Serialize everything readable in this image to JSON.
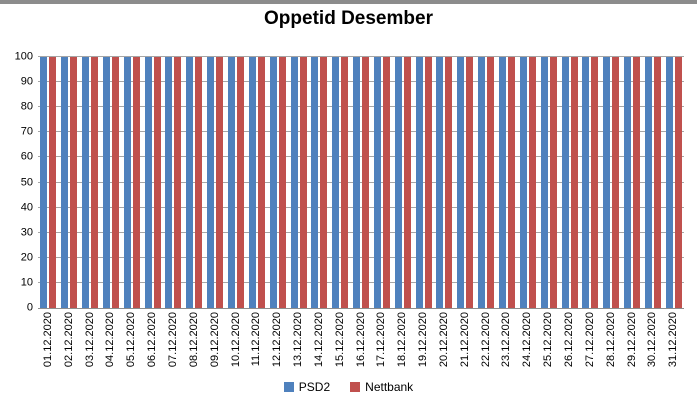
{
  "window": {
    "top_border_color": "#8c8c8c"
  },
  "chart_data": {
    "type": "bar",
    "title": "Oppetid Desember",
    "xlabel": "",
    "ylabel": "",
    "categories": [
      "01.12.2020",
      "02.12.2020",
      "03.12.2020",
      "04.12.2020",
      "05.12.2020",
      "06.12.2020",
      "07.12.2020",
      "08.12.2020",
      "09.12.2020",
      "10.12.2020",
      "11.12.2020",
      "12.12.2020",
      "13.12.2020",
      "14.12.2020",
      "15.12.2020",
      "16.12.2020",
      "17.12.2020",
      "18.12.2020",
      "19.12.2020",
      "20.12.2020",
      "21.12.2020",
      "22.12.2020",
      "23.12.2020",
      "24.12.2020",
      "25.12.2020",
      "26.12.2020",
      "27.12.2020",
      "28.12.2020",
      "29.12.2020",
      "30.12.2020",
      "31.12.2020"
    ],
    "series": [
      {
        "name": "PSD2",
        "color": "#4F81BD",
        "values": [
          100,
          100,
          100,
          100,
          100,
          100,
          100,
          100,
          100,
          100,
          100,
          100,
          100,
          100,
          100,
          100,
          100,
          100,
          100,
          100,
          100,
          100,
          100,
          100,
          100,
          100,
          100,
          100,
          100,
          100,
          100
        ]
      },
      {
        "name": "Nettbank",
        "color": "#C0504D",
        "values": [
          100,
          100,
          100,
          100,
          100,
          100,
          100,
          100,
          100,
          100,
          100,
          100,
          100,
          100,
          100,
          100,
          100,
          100,
          100,
          100,
          100,
          100,
          100,
          100,
          100,
          100,
          100,
          100,
          100,
          100,
          100
        ]
      }
    ],
    "ylim": [
      0,
      100
    ],
    "ytick_step": 10,
    "grid": "horizontal",
    "gridline_color": "#a6a6a6",
    "legend_position": "bottom-center"
  }
}
